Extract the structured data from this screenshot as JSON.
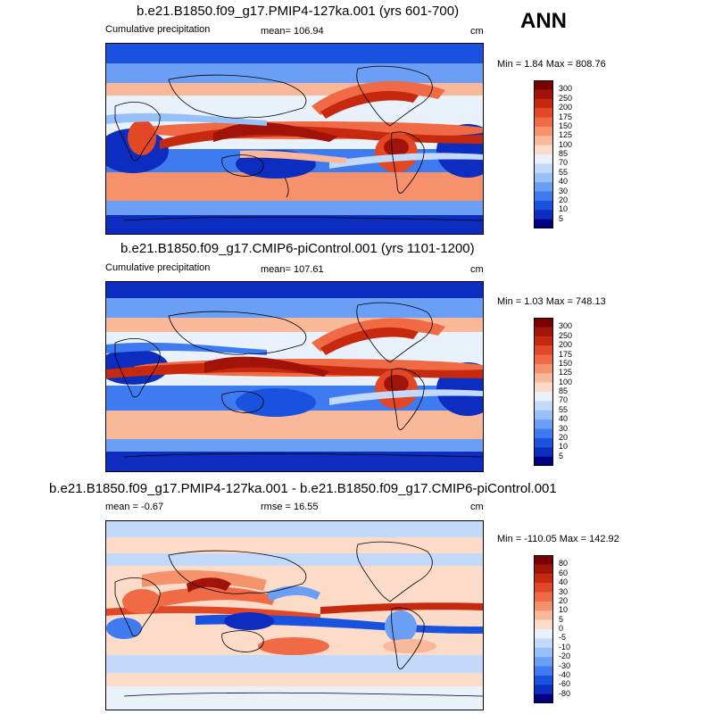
{
  "season": "ANN",
  "colorbar_colors": {
    "abs": [
      "#000080",
      "#0c2dbf",
      "#1a52e0",
      "#3e7bf0",
      "#6a9ff5",
      "#97bff8",
      "#c2d9fa",
      "#e9f1fb",
      "#fcdcc8",
      "#f9b89a",
      "#f5926c",
      "#ef6a45",
      "#e24826",
      "#c7290f",
      "#a11208",
      "#7a0000"
    ],
    "diff": [
      "#000080",
      "#0c2dbf",
      "#1a52e0",
      "#3e7bf0",
      "#6a9ff5",
      "#97bff8",
      "#c2d9fa",
      "#e9f1fb",
      "#fcdcc8",
      "#f9b89a",
      "#f5926c",
      "#ef6a45",
      "#e24826",
      "#c7290f",
      "#a11208",
      "#7a0000"
    ]
  },
  "chart_data": [
    {
      "type": "heatmap",
      "title": "b.e21.B1850.f09_g17.PMIP4-127ka.001 (yrs 601-700)",
      "variable": "Cumulative precipitation",
      "mean_label": "mean= 106.94",
      "units": "cm",
      "minmax": "Min =   1.84 Max = 808.76",
      "min": 1.84,
      "max": 808.76,
      "mean": 106.94,
      "levels": [
        "300",
        "250",
        "200",
        "175",
        "150",
        "125",
        "100",
        "85",
        "70",
        "55",
        "40",
        "30",
        "20",
        "10",
        "5"
      ]
    },
    {
      "type": "heatmap",
      "title": "b.e21.B1850.f09_g17.CMIP6-piControl.001 (yrs 1101-1200)",
      "variable": "Cumulative precipitation",
      "mean_label": "mean= 107.61",
      "units": "cm",
      "minmax": "Min =  1.03 Max = 748.13",
      "min": 1.03,
      "max": 748.13,
      "mean": 107.61,
      "levels": [
        "300",
        "250",
        "200",
        "175",
        "150",
        "125",
        "100",
        "85",
        "70",
        "55",
        "40",
        "30",
        "20",
        "10",
        "5"
      ]
    },
    {
      "type": "heatmap",
      "title": "b.e21.B1850.f09_g17.PMIP4-127ka.001 - b.e21.B1850.f09_g17.CMIP6-piControl.001",
      "mean_label": "mean =  -0.67",
      "rmse_label": "rmse =  16.55",
      "units": "cm",
      "minmax": "Min = -110.05 Max = 142.92",
      "min": -110.05,
      "max": 142.92,
      "mean": -0.67,
      "rmse": 16.55,
      "levels": [
        "80",
        "60",
        "40",
        "30",
        "20",
        "10",
        "5",
        "0",
        "-5",
        "-10",
        "-20",
        "-30",
        "-40",
        "-60",
        "-80"
      ]
    }
  ]
}
